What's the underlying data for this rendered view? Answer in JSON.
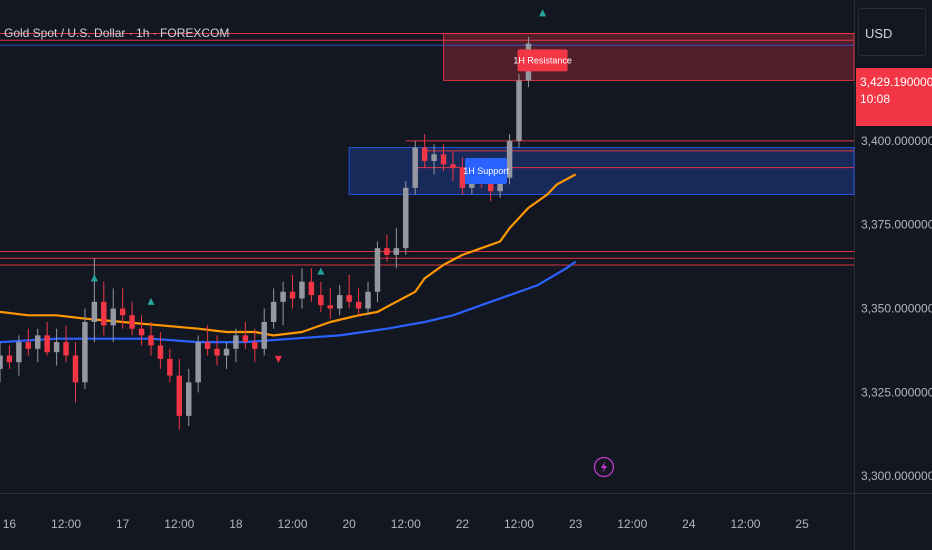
{
  "header": {
    "symbol_title": "Gold Spot / U.S. Dollar · 1h · FOREXCOM"
  },
  "price_scale": {
    "currency": "USD",
    "last_price": "3,429.1900000000",
    "countdown": "10:08",
    "ticks": [
      {
        "label": "3,400.0000000000",
        "value": 3400
      },
      {
        "label": "3,375.0000000000",
        "value": 3375
      },
      {
        "label": "3,350.0000000000",
        "value": 3350
      },
      {
        "label": "3,325.0000000000",
        "value": 3325
      },
      {
        "label": "3,300.0000000000",
        "value": 3300
      }
    ]
  },
  "time_axis": {
    "ticks": [
      {
        "label": "16",
        "t": 0
      },
      {
        "label": "12:00",
        "t": 12
      },
      {
        "label": "17",
        "t": 24
      },
      {
        "label": "12:00",
        "t": 36
      },
      {
        "label": "18",
        "t": 48
      },
      {
        "label": "12:00",
        "t": 60
      },
      {
        "label": "20",
        "t": 72
      },
      {
        "label": "12:00",
        "t": 84
      },
      {
        "label": "22",
        "t": 96
      },
      {
        "label": "12:00",
        "t": 108
      },
      {
        "label": "23",
        "t": 120
      },
      {
        "label": "12:00",
        "t": 132
      },
      {
        "label": "24",
        "t": 144
      },
      {
        "label": "12:00",
        "t": 156
      },
      {
        "label": "25",
        "t": 168
      }
    ]
  },
  "colors": {
    "background": "#131722",
    "up_candle": "#9598a1",
    "down_candle": "#f23645",
    "ema_fast": "#ff9800",
    "ema_slow": "#2962ff",
    "resistance": "#f23645",
    "support": "#2962ff",
    "signal_up": "#26a69a",
    "indicator_icon": "#c33ccf"
  },
  "chart_data": {
    "type": "candlestick",
    "symbol": "Gold Spot / U.S. Dollar",
    "timeframe": "1h",
    "x_unit": "hours from 16 00:00",
    "ylim": [
      3295,
      3442
    ],
    "xlim": [
      -2,
      179
    ],
    "series": [
      {
        "name": "",
        "kind": "line",
        "color": "#ff9800",
        "points": [
          [
            -2,
            3349
          ],
          [
            4,
            3348
          ],
          [
            10,
            3348
          ],
          [
            16,
            3347
          ],
          [
            24,
            3346
          ],
          [
            32,
            3345
          ],
          [
            40,
            3344
          ],
          [
            46,
            3343
          ],
          [
            52,
            3343
          ],
          [
            56,
            3342
          ],
          [
            62,
            3343
          ],
          [
            68,
            3346
          ],
          [
            74,
            3348
          ],
          [
            78,
            3349
          ],
          [
            82,
            3352
          ],
          [
            86,
            3355
          ],
          [
            88,
            3359
          ],
          [
            92,
            3363
          ],
          [
            96,
            3366
          ],
          [
            100,
            3368
          ],
          [
            104,
            3370
          ],
          [
            106,
            3374
          ],
          [
            110,
            3380
          ],
          [
            114,
            3384
          ],
          [
            116,
            3387
          ],
          [
            120,
            3390
          ]
        ]
      },
      {
        "name": "",
        "kind": "line",
        "color": "#2962ff",
        "points": [
          [
            -2,
            3340
          ],
          [
            10,
            3341
          ],
          [
            20,
            3341
          ],
          [
            30,
            3341
          ],
          [
            40,
            3340
          ],
          [
            50,
            3340
          ],
          [
            60,
            3341
          ],
          [
            70,
            3342
          ],
          [
            80,
            3344
          ],
          [
            88,
            3346
          ],
          [
            94,
            3348
          ],
          [
            100,
            3351
          ],
          [
            106,
            3354
          ],
          [
            112,
            3357
          ],
          [
            118,
            3362
          ],
          [
            120,
            3364
          ]
        ]
      }
    ],
    "candles": [
      [
        -2,
        3332,
        3340,
        3328,
        3336
      ],
      [
        0,
        3336,
        3339,
        3332,
        3334
      ],
      [
        2,
        3334,
        3342,
        3330,
        3340
      ],
      [
        4,
        3340,
        3344,
        3336,
        3338
      ],
      [
        6,
        3338,
        3344,
        3334,
        3342
      ],
      [
        8,
        3342,
        3346,
        3336,
        3337
      ],
      [
        10,
        3337,
        3344,
        3333,
        3340
      ],
      [
        12,
        3340,
        3345,
        3334,
        3336
      ],
      [
        14,
        3336,
        3340,
        3322,
        3328
      ],
      [
        16,
        3328,
        3350,
        3326,
        3346
      ],
      [
        18,
        3346,
        3365,
        3340,
        3352
      ],
      [
        20,
        3352,
        3358,
        3342,
        3345
      ],
      [
        22,
        3345,
        3356,
        3340,
        3350
      ],
      [
        24,
        3350,
        3356,
        3344,
        3348
      ],
      [
        26,
        3348,
        3352,
        3342,
        3344
      ],
      [
        28,
        3344,
        3348,
        3339,
        3342
      ],
      [
        30,
        3342,
        3346,
        3336,
        3339
      ],
      [
        32,
        3339,
        3343,
        3332,
        3335
      ],
      [
        34,
        3335,
        3338,
        3328,
        3330
      ],
      [
        36,
        3330,
        3335,
        3314,
        3318
      ],
      [
        38,
        3318,
        3332,
        3315,
        3328
      ],
      [
        40,
        3328,
        3342,
        3325,
        3340
      ],
      [
        42,
        3340,
        3345,
        3336,
        3338
      ],
      [
        44,
        3338,
        3342,
        3333,
        3336
      ],
      [
        46,
        3336,
        3340,
        3332,
        3338
      ],
      [
        48,
        3338,
        3344,
        3334,
        3342
      ],
      [
        50,
        3342,
        3346,
        3338,
        3340
      ],
      [
        52,
        3340,
        3344,
        3334,
        3338
      ],
      [
        54,
        3338,
        3350,
        3336,
        3346
      ],
      [
        56,
        3346,
        3356,
        3344,
        3352
      ],
      [
        58,
        3352,
        3358,
        3345,
        3355
      ],
      [
        60,
        3355,
        3360,
        3350,
        3353
      ],
      [
        62,
        3353,
        3362,
        3350,
        3358
      ],
      [
        64,
        3358,
        3362,
        3352,
        3354
      ],
      [
        66,
        3354,
        3358,
        3349,
        3351
      ],
      [
        68,
        3351,
        3356,
        3347,
        3350
      ],
      [
        70,
        3350,
        3357,
        3348,
        3354
      ],
      [
        72,
        3354,
        3360,
        3350,
        3352
      ],
      [
        74,
        3352,
        3356,
        3348,
        3350
      ],
      [
        76,
        3350,
        3358,
        3348,
        3355
      ],
      [
        78,
        3355,
        3370,
        3352,
        3368
      ],
      [
        80,
        3368,
        3372,
        3364,
        3366
      ],
      [
        82,
        3366,
        3374,
        3362,
        3368
      ],
      [
        84,
        3368,
        3388,
        3366,
        3386
      ],
      [
        86,
        3386,
        3400,
        3384,
        3398
      ],
      [
        88,
        3398,
        3402,
        3392,
        3394
      ],
      [
        90,
        3394,
        3399,
        3390,
        3396
      ],
      [
        92,
        3396,
        3399,
        3391,
        3393
      ],
      [
        94,
        3393,
        3397,
        3388,
        3392
      ],
      [
        96,
        3392,
        3395,
        3384,
        3386
      ],
      [
        98,
        3386,
        3394,
        3384,
        3390
      ],
      [
        100,
        3390,
        3395,
        3386,
        3388
      ],
      [
        102,
        3388,
        3392,
        3382,
        3385
      ],
      [
        104,
        3385,
        3390,
        3383,
        3389
      ],
      [
        106,
        3389,
        3402,
        3387,
        3400
      ],
      [
        108,
        3400,
        3420,
        3398,
        3418
      ],
      [
        110,
        3418,
        3431,
        3416,
        3429
      ]
    ],
    "zones": [
      {
        "type": "resistance",
        "x0": 92,
        "x1": 179,
        "y0": 3418,
        "y1": 3432
      },
      {
        "type": "support",
        "x0": 72,
        "x1": 179,
        "y0": 3384,
        "y1": 3398
      }
    ],
    "levels": [
      {
        "type": "resistance",
        "x0": -2,
        "x1": 179,
        "y": 3432
      },
      {
        "type": "resistance",
        "x0": -2,
        "x1": 179,
        "y": 3430
      },
      {
        "type": "resistance",
        "x0": 84,
        "x1": 179,
        "y": 3400
      },
      {
        "type": "resistance",
        "x0": 88,
        "x1": 179,
        "y": 3397
      },
      {
        "type": "resistance",
        "x0": 86,
        "x1": 179,
        "y": 3392
      },
      {
        "type": "resistance",
        "x0": -2,
        "x1": 179,
        "y": 3367
      },
      {
        "type": "resistance",
        "x0": -2,
        "x1": 179,
        "y": 3365
      },
      {
        "type": "resistance",
        "x0": -2,
        "x1": 179,
        "y": 3363
      }
    ],
    "labels": [
      {
        "text": "1H Resistance",
        "t": 113,
        "y": 3424,
        "kind": "resistance"
      },
      {
        "text": "1H Support",
        "t": 101,
        "y": 3391,
        "kind": "support"
      }
    ],
    "signal_markers": [
      {
        "t": 18,
        "y": 3359
      },
      {
        "t": 30,
        "y": 3352
      },
      {
        "t": 66,
        "y": 3361
      },
      {
        "t": 113,
        "y": 3438
      }
    ],
    "sell_markers": [
      {
        "t": 57,
        "y": 3335
      }
    ],
    "indicator_marker_t": 126
  }
}
